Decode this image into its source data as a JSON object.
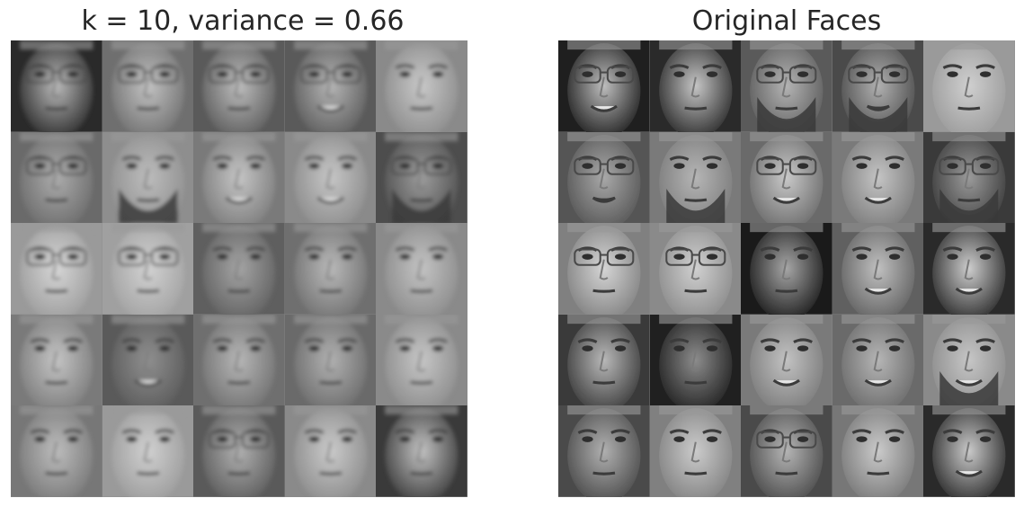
{
  "left_panel": {
    "title": "k = 10, variance = 0.66",
    "style": "reconstructed",
    "rows": 5,
    "cols": 5,
    "faces": [
      {
        "bg": "#2a2a2a",
        "skin": "#b9b9b9",
        "glasses": true,
        "beard": false,
        "mouth": "neutral"
      },
      {
        "bg": "#6f6f6f",
        "skin": "#c2c2c2",
        "glasses": true,
        "beard": false,
        "mouth": "neutral"
      },
      {
        "bg": "#5a5a5a",
        "skin": "#bdbdbd",
        "glasses": true,
        "beard": false,
        "mouth": "neutral"
      },
      {
        "bg": "#5a5a5a",
        "skin": "#b5b5b5",
        "glasses": true,
        "beard": false,
        "mouth": "smile"
      },
      {
        "bg": "#8a8a8a",
        "skin": "#c8c8c8",
        "glasses": false,
        "beard": false,
        "mouth": "neutral"
      },
      {
        "bg": "#6a6a6a",
        "skin": "#acacac",
        "glasses": true,
        "beard": false,
        "mouth": "neutral"
      },
      {
        "bg": "#8e8e8e",
        "skin": "#bcbcbc",
        "glasses": false,
        "beard": true,
        "mouth": "neutral"
      },
      {
        "bg": "#7a7a7a",
        "skin": "#c5c5c5",
        "glasses": false,
        "beard": false,
        "mouth": "smile"
      },
      {
        "bg": "#8a8a8a",
        "skin": "#c6c6c6",
        "glasses": false,
        "beard": false,
        "mouth": "smile"
      },
      {
        "bg": "#4d4d4d",
        "skin": "#9c9c9c",
        "glasses": true,
        "beard": true,
        "mouth": "neutral"
      },
      {
        "bg": "#9a9a9a",
        "skin": "#d6d6d6",
        "glasses": true,
        "beard": false,
        "mouth": "neutral"
      },
      {
        "bg": "#a0a0a0",
        "skin": "#d2d2d2",
        "glasses": true,
        "beard": false,
        "mouth": "neutral"
      },
      {
        "bg": "#5f5f5f",
        "skin": "#a4a4a4",
        "glasses": false,
        "beard": false,
        "mouth": "neutral"
      },
      {
        "bg": "#6f6f6f",
        "skin": "#b9b9b9",
        "glasses": false,
        "beard": false,
        "mouth": "neutral"
      },
      {
        "bg": "#8a8a8a",
        "skin": "#c3c3c3",
        "glasses": false,
        "beard": false,
        "mouth": "neutral"
      },
      {
        "bg": "#7a7a7a",
        "skin": "#c4c4c4",
        "glasses": false,
        "beard": false,
        "mouth": "neutral"
      },
      {
        "bg": "#5a5a5a",
        "skin": "#8f8f8f",
        "glasses": false,
        "beard": false,
        "mouth": "smile"
      },
      {
        "bg": "#6f6f6f",
        "skin": "#b6b6b6",
        "glasses": false,
        "beard": false,
        "mouth": "neutral"
      },
      {
        "bg": "#6a6a6a",
        "skin": "#b1b1b1",
        "glasses": false,
        "beard": false,
        "mouth": "neutral"
      },
      {
        "bg": "#8a8a8a",
        "skin": "#c6c6c6",
        "glasses": false,
        "beard": false,
        "mouth": "neutral"
      },
      {
        "bg": "#777777",
        "skin": "#bcbcbc",
        "glasses": false,
        "beard": false,
        "mouth": "neutral"
      },
      {
        "bg": "#9a9a9a",
        "skin": "#d0d0d0",
        "glasses": false,
        "beard": false,
        "mouth": "neutral"
      },
      {
        "bg": "#5a5a5a",
        "skin": "#b0b0b0",
        "glasses": true,
        "beard": false,
        "mouth": "neutral"
      },
      {
        "bg": "#8a8a8a",
        "skin": "#cacaca",
        "glasses": false,
        "beard": false,
        "mouth": "neutral"
      },
      {
        "bg": "#3a3a3a",
        "skin": "#c2c2c2",
        "glasses": false,
        "beard": false,
        "mouth": "neutral"
      }
    ]
  },
  "right_panel": {
    "title": "Original Faces",
    "style": "sharp",
    "rows": 5,
    "cols": 5,
    "faces": [
      {
        "bg": "#1f1f1f",
        "skin": "#bdbdbd",
        "glasses": true,
        "beard": false,
        "mouth": "smile"
      },
      {
        "bg": "#2a2a2a",
        "skin": "#c5c5c5",
        "glasses": false,
        "beard": false,
        "mouth": "neutral"
      },
      {
        "bg": "#5a5a5a",
        "skin": "#b3b3b3",
        "glasses": true,
        "beard": true,
        "mouth": "neutral"
      },
      {
        "bg": "#4a4a4a",
        "skin": "#b0b0b0",
        "glasses": true,
        "beard": true,
        "mouth": "open"
      },
      {
        "bg": "#9a9a9a",
        "skin": "#cfcfcf",
        "glasses": false,
        "beard": false,
        "mouth": "neutral"
      },
      {
        "bg": "#555555",
        "skin": "#a8a8a8",
        "glasses": true,
        "beard": false,
        "mouth": "open"
      },
      {
        "bg": "#7a7a7a",
        "skin": "#b5b5b5",
        "glasses": false,
        "beard": true,
        "mouth": "neutral"
      },
      {
        "bg": "#6a6a6a",
        "skin": "#c8c8c8",
        "glasses": true,
        "beard": false,
        "mouth": "smile"
      },
      {
        "bg": "#7a7a7a",
        "skin": "#c4c4c4",
        "glasses": false,
        "beard": false,
        "mouth": "smile"
      },
      {
        "bg": "#3a3a3a",
        "skin": "#9a9a9a",
        "glasses": true,
        "beard": true,
        "mouth": "neutral"
      },
      {
        "bg": "#808080",
        "skin": "#d5d5d5",
        "glasses": true,
        "beard": false,
        "mouth": "neutral"
      },
      {
        "bg": "#8a8a8a",
        "skin": "#d0d0d0",
        "glasses": true,
        "beard": false,
        "mouth": "neutral"
      },
      {
        "bg": "#1a1a1a",
        "skin": "#a6a6a6",
        "glasses": false,
        "beard": false,
        "mouth": "neutral"
      },
      {
        "bg": "#606060",
        "skin": "#c0c0c0",
        "glasses": false,
        "beard": false,
        "mouth": "smile"
      },
      {
        "bg": "#2a2a2a",
        "skin": "#cdcdcd",
        "glasses": false,
        "beard": false,
        "mouth": "smile"
      },
      {
        "bg": "#3a3a3a",
        "skin": "#b8b8b8",
        "glasses": false,
        "beard": false,
        "mouth": "neutral"
      },
      {
        "bg": "#202020",
        "skin": "#8c8c8c",
        "glasses": false,
        "beard": false,
        "mouth": "neutral"
      },
      {
        "bg": "#7a7a7a",
        "skin": "#c2c2c2",
        "glasses": false,
        "beard": false,
        "mouth": "smile"
      },
      {
        "bg": "#6a6a6a",
        "skin": "#b5b5b5",
        "glasses": false,
        "beard": false,
        "mouth": "smile"
      },
      {
        "bg": "#8a8a8a",
        "skin": "#c6c6c6",
        "glasses": false,
        "beard": true,
        "mouth": "smile"
      },
      {
        "bg": "#4a4a4a",
        "skin": "#b0b0b0",
        "glasses": false,
        "beard": false,
        "mouth": "neutral"
      },
      {
        "bg": "#808080",
        "skin": "#cbcbcb",
        "glasses": false,
        "beard": false,
        "mouth": "neutral"
      },
      {
        "bg": "#4a4a4a",
        "skin": "#b4b4b4",
        "glasses": true,
        "beard": false,
        "mouth": "neutral"
      },
      {
        "bg": "#777777",
        "skin": "#cacaca",
        "glasses": false,
        "beard": false,
        "mouth": "neutral"
      },
      {
        "bg": "#2a2a2a",
        "skin": "#c9c9c9",
        "glasses": false,
        "beard": false,
        "mouth": "smile"
      }
    ]
  }
}
